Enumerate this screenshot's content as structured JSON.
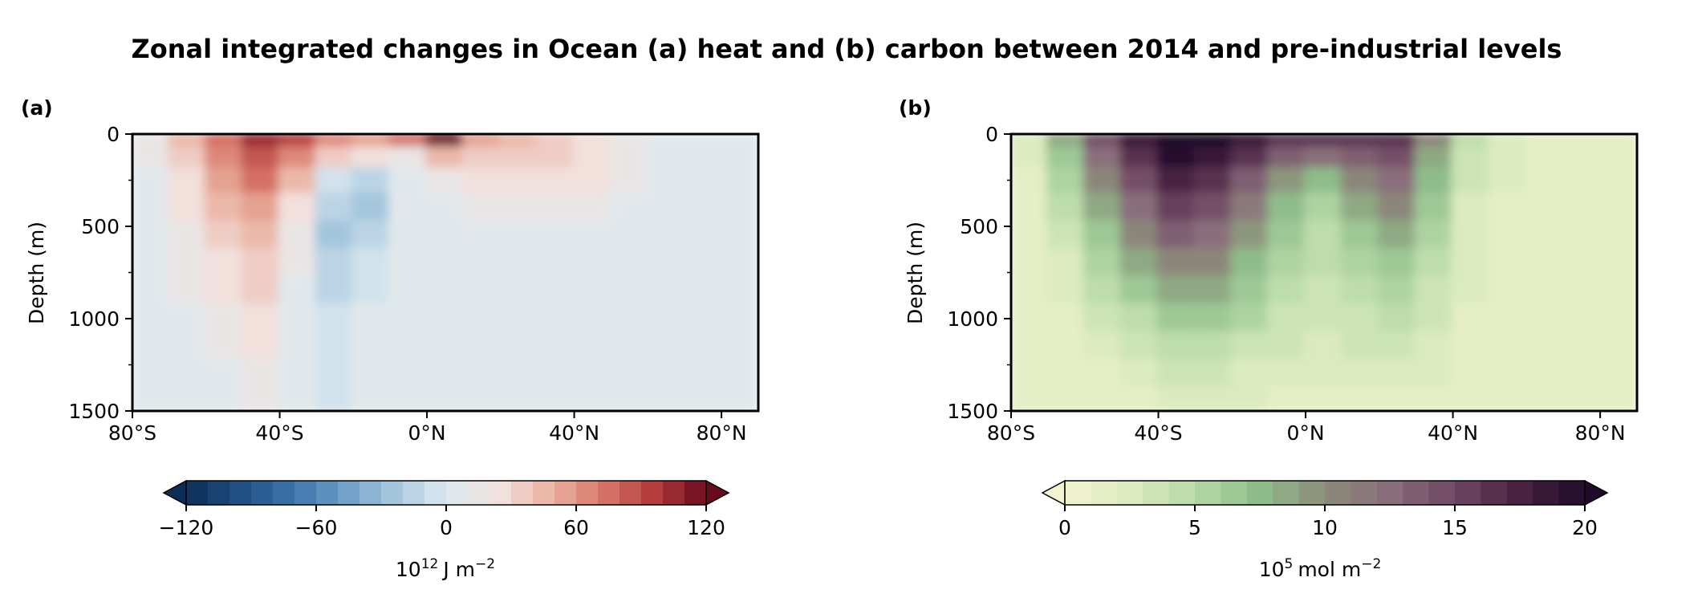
{
  "title": "Zonal integrated changes in Ocean (a) heat and (b) carbon between 2014 and pre-industrial levels",
  "chart_data": [
    {
      "type": "heatmap",
      "panel_label": "(a)",
      "ylabel": "Depth (m)",
      "xlabel": "",
      "x_tick_labels": [
        "80°S",
        "40°S",
        "0°N",
        "40°N",
        "80°N"
      ],
      "x_tick_values": [
        -80,
        -40,
        0,
        40,
        80
      ],
      "xlim": [
        -80,
        90
      ],
      "y_tick_labels": [
        "0",
        "500",
        "1000",
        "1500"
      ],
      "y_tick_values": [
        0,
        500,
        1000,
        1500
      ],
      "ylim": [
        1500,
        0
      ],
      "y_inverted": true,
      "colormap": "RdBu_r",
      "colorbar": {
        "ticks": [
          "−120",
          "−60",
          "0",
          "60",
          "120"
        ],
        "tick_values": [
          -120,
          -60,
          0,
          60,
          120
        ],
        "range": [
          -120,
          120
        ],
        "step": 10,
        "extend": "both",
        "label": "10",
        "label_exponent": "12",
        "label_units": "J m",
        "label_units_exponent": "−2"
      },
      "x": [
        -75,
        -65,
        -55,
        -45,
        -35,
        -25,
        -15,
        -5,
        5,
        15,
        25,
        35,
        45,
        55,
        65,
        75,
        85
      ],
      "depths": [
        25,
        125,
        250,
        400,
        550,
        700,
        850,
        1000,
        1150,
        1300,
        1450
      ],
      "values": [
        [
          10,
          40,
          70,
          100,
          90,
          60,
          50,
          70,
          120,
          50,
          40,
          30,
          20,
          15,
          5,
          5,
          5
        ],
        [
          10,
          30,
          60,
          80,
          60,
          30,
          20,
          10,
          40,
          35,
          35,
          30,
          25,
          15,
          5,
          5,
          5
        ],
        [
          8,
          25,
          50,
          70,
          40,
          -10,
          -15,
          0,
          10,
          25,
          25,
          25,
          20,
          10,
          5,
          5,
          5
        ],
        [
          5,
          20,
          40,
          55,
          25,
          -20,
          -25,
          0,
          5,
          10,
          15,
          15,
          10,
          5,
          5,
          5,
          5
        ],
        [
          5,
          15,
          30,
          40,
          15,
          -25,
          -15,
          0,
          5,
          5,
          5,
          5,
          5,
          5,
          5,
          5,
          5
        ],
        [
          5,
          12,
          25,
          35,
          10,
          -20,
          -10,
          0,
          5,
          5,
          5,
          5,
          5,
          5,
          5,
          5,
          5
        ],
        [
          5,
          10,
          20,
          30,
          5,
          -15,
          -5,
          0,
          5,
          5,
          5,
          5,
          5,
          5,
          5,
          5,
          5
        ],
        [
          5,
          8,
          15,
          25,
          0,
          -10,
          0,
          5,
          5,
          5,
          5,
          5,
          5,
          5,
          5,
          5,
          5
        ],
        [
          5,
          5,
          12,
          20,
          0,
          -5,
          0,
          5,
          5,
          5,
          5,
          5,
          5,
          5,
          5,
          5,
          5
        ],
        [
          5,
          5,
          8,
          15,
          0,
          -5,
          0,
          5,
          5,
          5,
          5,
          5,
          5,
          5,
          5,
          5,
          5
        ],
        [
          5,
          5,
          5,
          10,
          0,
          -5,
          0,
          5,
          5,
          5,
          5,
          5,
          5,
          5,
          5,
          5,
          5
        ]
      ]
    },
    {
      "type": "heatmap",
      "panel_label": "(b)",
      "ylabel": "Depth (m)",
      "xlabel": "",
      "x_tick_labels": [
        "80°S",
        "40°S",
        "0°N",
        "40°N",
        "80°N"
      ],
      "x_tick_values": [
        -80,
        -40,
        0,
        40,
        80
      ],
      "xlim": [
        -80,
        90
      ],
      "y_tick_labels": [
        "0",
        "500",
        "1000",
        "1500"
      ],
      "y_tick_values": [
        0,
        500,
        1000,
        1500
      ],
      "ylim": [
        1500,
        0
      ],
      "y_inverted": true,
      "colormap": "pink_green",
      "colorbar": {
        "ticks": [
          "0",
          "5",
          "10",
          "15",
          "20"
        ],
        "tick_values": [
          0,
          5,
          10,
          15,
          20
        ],
        "range": [
          0,
          20
        ],
        "step": 1,
        "extend": "both",
        "label": "10",
        "label_exponent": "5",
        "label_units": "mol m",
        "label_units_exponent": "−2"
      },
      "x": [
        -75,
        -65,
        -55,
        -45,
        -35,
        -25,
        -15,
        -5,
        5,
        15,
        25,
        35,
        45,
        55,
        65,
        75,
        85
      ],
      "depths": [
        25,
        125,
        250,
        400,
        550,
        700,
        850,
        1000,
        1150,
        1300,
        1450
      ],
      "values": [
        [
          2,
          8,
          14,
          18,
          20,
          20,
          18,
          16,
          16,
          16,
          16,
          10,
          4,
          2,
          1,
          1,
          1
        ],
        [
          2,
          6,
          12,
          16,
          19,
          18,
          16,
          13,
          12,
          13,
          14,
          8,
          3,
          2,
          1,
          1,
          1
        ],
        [
          1,
          5,
          10,
          14,
          17,
          16,
          13,
          9,
          7,
          10,
          12,
          7,
          3,
          2,
          1,
          1,
          1
        ],
        [
          1,
          4,
          8,
          12,
          15,
          14,
          11,
          7,
          5,
          8,
          10,
          6,
          2,
          1,
          1,
          1,
          1
        ],
        [
          1,
          3,
          6,
          10,
          13,
          12,
          9,
          6,
          4,
          6,
          8,
          5,
          2,
          1,
          1,
          1,
          1
        ],
        [
          1,
          2,
          5,
          8,
          10,
          10,
          7,
          5,
          4,
          5,
          6,
          4,
          2,
          1,
          1,
          1,
          1
        ],
        [
          1,
          2,
          4,
          6,
          8,
          8,
          6,
          4,
          3,
          4,
          5,
          3,
          2,
          1,
          1,
          1,
          1
        ],
        [
          1,
          1,
          3,
          4,
          6,
          6,
          5,
          3,
          3,
          3,
          4,
          3,
          1,
          1,
          1,
          1,
          1
        ],
        [
          1,
          1,
          2,
          3,
          4,
          4,
          3,
          3,
          2,
          3,
          3,
          2,
          1,
          1,
          1,
          1,
          1
        ],
        [
          1,
          1,
          1,
          2,
          3,
          3,
          2,
          2,
          2,
          2,
          2,
          2,
          1,
          1,
          1,
          1,
          1
        ],
        [
          1,
          1,
          1,
          1,
          2,
          2,
          2,
          1,
          1,
          1,
          1,
          1,
          1,
          1,
          1,
          1,
          1
        ]
      ]
    }
  ]
}
